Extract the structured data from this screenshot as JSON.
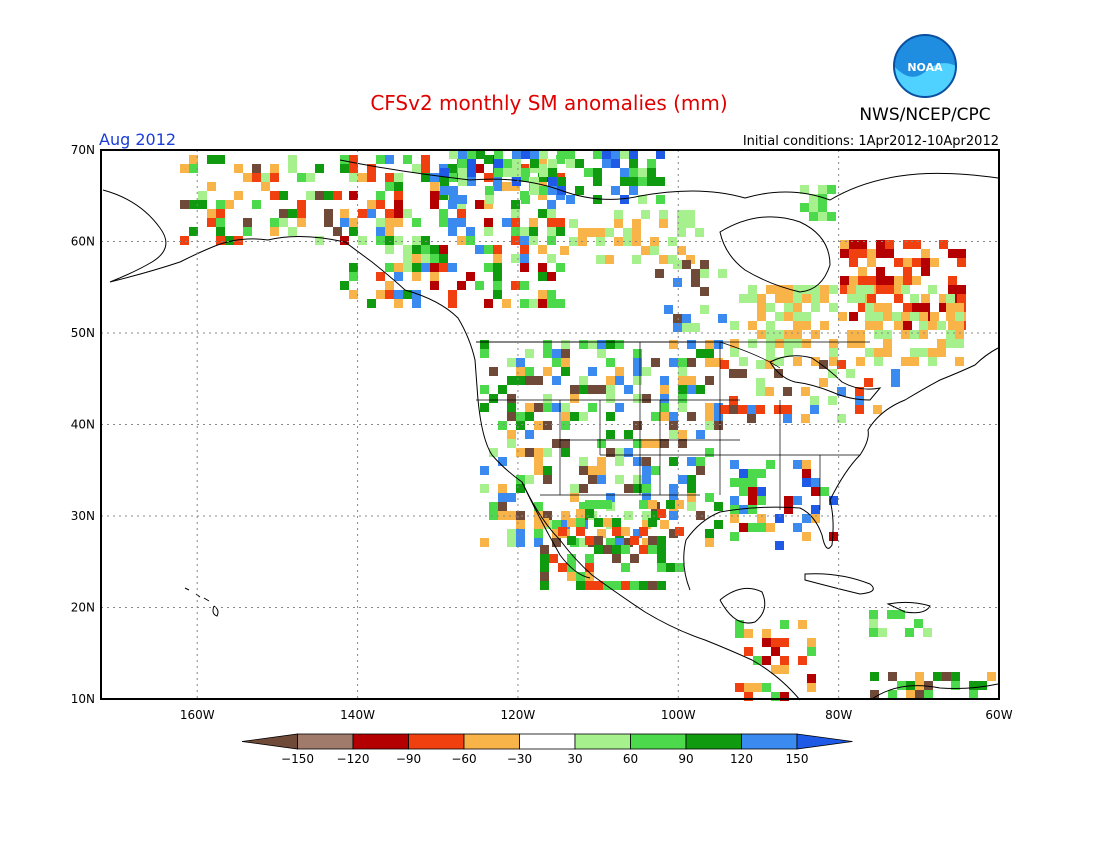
{
  "header": {
    "title": "CFSv2 monthly SM anomalies (mm)",
    "agency": "NWS/NCEP/CPC",
    "logo_text": "NOAA",
    "valid_month": "Aug 2012",
    "initial_conditions": "Initial conditions: 1Apr2012-10Apr2012"
  },
  "map": {
    "projection": "lat-lon",
    "lon_range": [
      -172,
      -60
    ],
    "lat_range": [
      10,
      70
    ],
    "lon_ticks": [
      "160W",
      "140W",
      "120W",
      "100W",
      "80W",
      "60W"
    ],
    "lat_ticks": [
      "70N",
      "60N",
      "50N",
      "40N",
      "30N",
      "20N",
      "10N"
    ],
    "grid": "dotted"
  },
  "legend": {
    "labels": [
      "-150",
      "-120",
      "-90",
      "-60",
      "-30",
      "30",
      "60",
      "90",
      "120",
      "150"
    ],
    "colors": {
      "lt_neg150": "#6f4a39",
      "neg150_neg120": "#a07a6a",
      "neg120_neg90": "#b40000",
      "neg90_neg60": "#f04010",
      "neg60_neg30": "#f8b448",
      "neg30_30": "#ffffff",
      "p30_60": "#a6f08e",
      "p60_90": "#4cd94c",
      "p90_120": "#109a10",
      "p120_150": "#3a8af0",
      "gt_150": "#1f5ae6"
    }
  }
}
